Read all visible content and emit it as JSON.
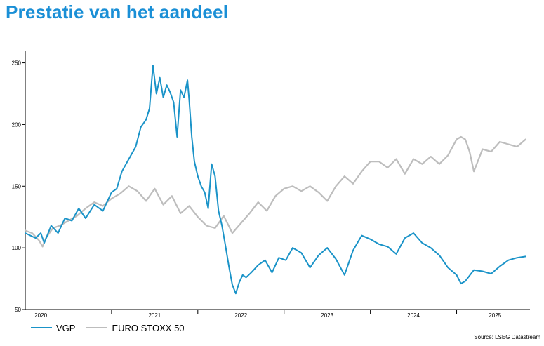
{
  "title": "Prestatie van het aandeel",
  "source": "Source: LSEG Datastream",
  "colors": {
    "vgp": "#1a93c8",
    "stoxx": "#bdbdbd",
    "title": "#1a8fd6"
  },
  "chart_data": {
    "type": "line",
    "ylim": [
      50,
      260
    ],
    "yticks": [
      "250",
      "200",
      "150",
      "100",
      "50"
    ],
    "x_tick_labels": [
      "2020",
      "2021",
      "2022",
      "2023",
      "2024",
      "2025"
    ],
    "xlim": [
      2020.0,
      2025.85
    ],
    "grid": false,
    "legend_placement": "bottom-left",
    "series": [
      {
        "name": "VGP",
        "color": "#1a93c8",
        "x": [
          2020.0,
          2020.06,
          2020.12,
          2020.18,
          2020.22,
          2020.3,
          2020.38,
          2020.46,
          2020.54,
          2020.62,
          2020.7,
          2020.8,
          2020.9,
          2021.0,
          2021.06,
          2021.12,
          2021.2,
          2021.28,
          2021.34,
          2021.4,
          2021.44,
          2021.48,
          2021.52,
          2021.56,
          2021.6,
          2021.64,
          2021.68,
          2021.72,
          2021.76,
          2021.8,
          2021.84,
          2021.88,
          2021.9,
          2021.93,
          2021.96,
          2022.0,
          2022.04,
          2022.08,
          2022.12,
          2022.16,
          2022.2,
          2022.24,
          2022.28,
          2022.32,
          2022.36,
          2022.4,
          2022.44,
          2022.48,
          2022.52,
          2022.56,
          2022.62,
          2022.7,
          2022.78,
          2022.86,
          2022.94,
          2023.02,
          2023.1,
          2023.2,
          2023.3,
          2023.4,
          2023.5,
          2023.6,
          2023.7,
          2023.8,
          2023.9,
          2024.0,
          2024.1,
          2024.2,
          2024.3,
          2024.4,
          2024.5,
          2024.6,
          2024.7,
          2024.8,
          2024.9,
          2025.0,
          2025.05,
          2025.1,
          2025.2,
          2025.3,
          2025.4,
          2025.5,
          2025.6,
          2025.7,
          2025.8
        ],
        "values": [
          112,
          110,
          108,
          112,
          104,
          118,
          112,
          124,
          122,
          132,
          124,
          135,
          130,
          145,
          148,
          162,
          172,
          182,
          198,
          204,
          213,
          248,
          225,
          238,
          222,
          232,
          226,
          218,
          190,
          228,
          222,
          236,
          220,
          190,
          170,
          158,
          150,
          145,
          132,
          168,
          158,
          130,
          118,
          102,
          85,
          70,
          63,
          72,
          78,
          76,
          80,
          86,
          90,
          80,
          92,
          90,
          100,
          96,
          84,
          94,
          100,
          91,
          78,
          98,
          110,
          107,
          103,
          101,
          95,
          108,
          112,
          104,
          100,
          94,
          84,
          78,
          71,
          73,
          82,
          81,
          79,
          85,
          90,
          92,
          93
        ]
      },
      {
        "name": "EURO STOXX 50",
        "color": "#bdbdbd",
        "x": [
          2020.0,
          2020.08,
          2020.16,
          2020.2,
          2020.24,
          2020.32,
          2020.4,
          2020.5,
          2020.6,
          2020.7,
          2020.8,
          2020.9,
          2021.0,
          2021.1,
          2021.2,
          2021.3,
          2021.4,
          2021.5,
          2021.6,
          2021.7,
          2021.8,
          2021.9,
          2022.0,
          2022.1,
          2022.2,
          2022.3,
          2022.4,
          2022.5,
          2022.6,
          2022.7,
          2022.8,
          2022.9,
          2023.0,
          2023.1,
          2023.2,
          2023.3,
          2023.4,
          2023.5,
          2023.6,
          2023.7,
          2023.8,
          2023.9,
          2024.0,
          2024.1,
          2024.2,
          2024.3,
          2024.4,
          2024.5,
          2024.6,
          2024.7,
          2024.8,
          2024.9,
          2025.0,
          2025.05,
          2025.1,
          2025.15,
          2025.2,
          2025.3,
          2025.4,
          2025.5,
          2025.6,
          2025.7,
          2025.8
        ],
        "values": [
          114,
          112,
          106,
          101,
          108,
          116,
          118,
          122,
          126,
          132,
          137,
          134,
          140,
          144,
          150,
          146,
          138,
          148,
          135,
          142,
          128,
          134,
          125,
          118,
          116,
          126,
          112,
          120,
          128,
          137,
          130,
          142,
          148,
          150,
          146,
          150,
          145,
          138,
          150,
          158,
          152,
          162,
          170,
          170,
          165,
          172,
          160,
          172,
          168,
          174,
          168,
          175,
          188,
          190,
          188,
          178,
          162,
          180,
          178,
          186,
          184,
          182,
          188
        ]
      }
    ]
  }
}
